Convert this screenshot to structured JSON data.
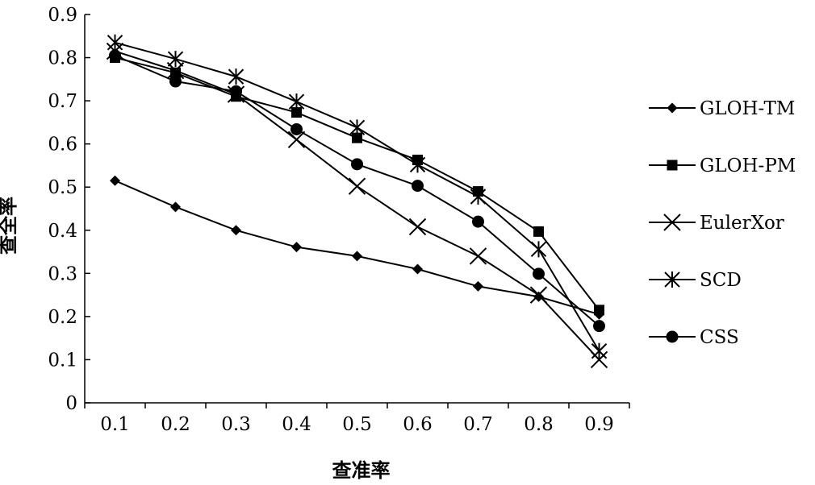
{
  "chart_data": {
    "type": "line",
    "title": "",
    "xlabel": "查准率",
    "ylabel": "查全率",
    "x": [
      0.1,
      0.2,
      0.3,
      0.4,
      0.5,
      0.6,
      0.7,
      0.8,
      0.9
    ],
    "x_tick_labels": [
      "0.1",
      "0.2",
      "0.3",
      "0.4",
      "0.5",
      "0.6",
      "0.7",
      "0.8",
      "0.9"
    ],
    "xlim": [
      0.05,
      0.95
    ],
    "y_ticks": [
      0,
      0.1,
      0.2,
      0.3,
      0.4,
      0.5,
      0.6,
      0.7,
      0.8,
      0.9
    ],
    "y_tick_labels": [
      "0",
      "0.1",
      "0.2",
      "0.3",
      "0.4",
      "0.5",
      "0.6",
      "0.7",
      "0.8",
      "0.9"
    ],
    "ylim": [
      0,
      0.9
    ],
    "grid": false,
    "legend_position": "right",
    "color": "#000000",
    "series": [
      {
        "name": "GLOH-TM",
        "marker": "diamond",
        "values": [
          0.515,
          0.454,
          0.4,
          0.361,
          0.34,
          0.31,
          0.27,
          0.246,
          0.205
        ]
      },
      {
        "name": "GLOH-PM",
        "marker": "square",
        "values": [
          0.8,
          0.765,
          0.71,
          0.673,
          0.614,
          0.563,
          0.49,
          0.397,
          0.215
        ]
      },
      {
        "name": "EulerXor",
        "marker": "x",
        "values": [
          0.815,
          0.77,
          0.715,
          0.61,
          0.502,
          0.408,
          0.34,
          0.25,
          0.1
        ]
      },
      {
        "name": "SCD",
        "marker": "star",
        "values": [
          0.835,
          0.797,
          0.756,
          0.698,
          0.638,
          0.552,
          0.478,
          0.356,
          0.12
        ]
      },
      {
        "name": "CSS",
        "marker": "circle",
        "values": [
          0.805,
          0.745,
          0.722,
          0.634,
          0.553,
          0.503,
          0.42,
          0.299,
          0.178
        ]
      }
    ]
  }
}
